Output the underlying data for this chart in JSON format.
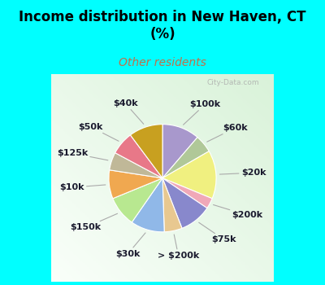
{
  "title": "Income distribution in New Haven, CT\n(%)",
  "subtitle": "Other residents",
  "title_color": "#000000",
  "subtitle_color": "#c0704a",
  "bg_cyan": "#00ffff",
  "watermark": "City-Data.com",
  "slices": [
    {
      "label": "$100k",
      "value": 10.5,
      "color": "#a898cc"
    },
    {
      "label": "$60k",
      "value": 5.0,
      "color": "#b0c898"
    },
    {
      "label": "$20k",
      "value": 13.5,
      "color": "#f0f080"
    },
    {
      "label": "$200k",
      "value": 3.0,
      "color": "#f0a8b8"
    },
    {
      "label": "$75k",
      "value": 9.0,
      "color": "#8888cc"
    },
    {
      "label": "> $200k",
      "value": 5.0,
      "color": "#e8c890"
    },
    {
      "label": "$30k",
      "value": 9.5,
      "color": "#90b8e8"
    },
    {
      "label": "$150k",
      "value": 8.5,
      "color": "#b8e890"
    },
    {
      "label": "$10k",
      "value": 8.0,
      "color": "#f0a850"
    },
    {
      "label": "$125k",
      "value": 5.0,
      "color": "#c0b898"
    },
    {
      "label": "$50k",
      "value": 6.5,
      "color": "#e87888"
    },
    {
      "label": "$40k",
      "value": 9.5,
      "color": "#c8a020"
    }
  ],
  "label_fontsize": 8,
  "label_color": "#1a1a2e",
  "title_fontsize": 12,
  "subtitle_fontsize": 10
}
